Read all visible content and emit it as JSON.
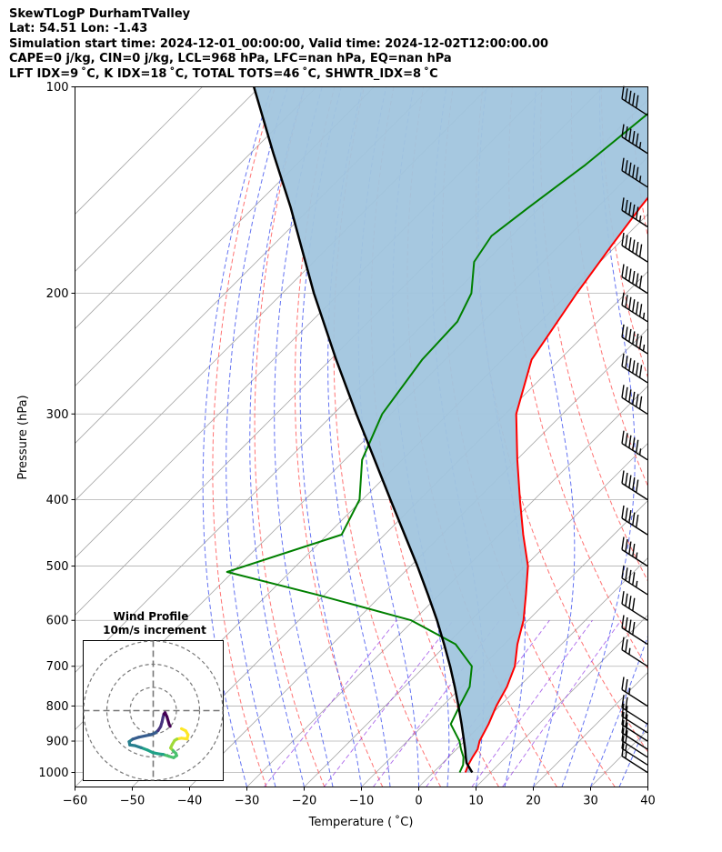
{
  "header": {
    "title": "SkewTLogP DurhamTValley",
    "location": "Lat: 54.51   Lon: -1.43",
    "times": "Simulation start time: 2024-12-01_00:00:00, Valid time: 2024-12-02T12:00:00.00",
    "indices1": "CAPE=0 j/kg, CIN=0 j/kg, LCL=968 hPa, LFC=nan hPa, EQ=nan hPa",
    "indices2": "LFT IDX=9$^\\circ$C, K IDX=18$^\\circ$C, TOTAL TOTS=46$^\\circ$C, SHWTR_IDX=8$^\\circ$C"
  },
  "header_display": {
    "indices2": "LFT IDX=9 ˚C, K IDX=18 ˚C, TOTAL TOTS=46 ˚C, SHWTR_IDX=8 ˚C"
  },
  "chart_data": {
    "type": "line",
    "title": "SkewTLogP DurhamTValley",
    "xlabel": "Temperature ($^\\circ$C)",
    "xlabel_display": "Temperature ( ˚C)",
    "ylabel": "Pressure (hPa)",
    "xlim": [
      -60,
      40
    ],
    "ylim": [
      1050,
      100
    ],
    "x_ticks": [
      "−60",
      "−50",
      "−40",
      "−30",
      "−20",
      "−10",
      "0",
      "10",
      "20",
      "30",
      "40"
    ],
    "x_tick_values": [
      -60,
      -50,
      -40,
      -30,
      -20,
      -10,
      0,
      10,
      20,
      30,
      40
    ],
    "y_ticks": [
      "1000",
      "900",
      "800",
      "700",
      "600",
      "500",
      "400",
      "300",
      "200",
      "100"
    ],
    "y_tick_values": [
      1000,
      900,
      800,
      700,
      600,
      500,
      400,
      300,
      200,
      100
    ],
    "series": [
      {
        "name": "Temperature",
        "color": "#ff0000",
        "pressure": [
          1000,
          975,
          950,
          925,
          900,
          850,
          800,
          750,
          700,
          650,
          600,
          550,
          500,
          450,
          400,
          350,
          300,
          250,
          200,
          170,
          150,
          130,
          115,
          100
        ],
        "values": [
          5.6,
          4.8,
          4.2,
          3.7,
          2.6,
          1.2,
          -0.6,
          -2.1,
          -4.3,
          -7.7,
          -10.8,
          -14.9,
          -19.5,
          -25.8,
          -32.5,
          -39.9,
          -48.1,
          -54.9,
          -58.6,
          -60.9,
          -62.5,
          -64.0,
          -64.8,
          -65.5
        ]
      },
      {
        "name": "Dewpoint",
        "color": "#008000",
        "pressure": [
          1000,
          975,
          950,
          925,
          900,
          850,
          800,
          750,
          700,
          650,
          600,
          550,
          510,
          450,
          400,
          350,
          300,
          250,
          220,
          200,
          180,
          165,
          150,
          130,
          100
        ],
        "values": [
          4.6,
          3.9,
          2.6,
          0.8,
          -0.9,
          -5.4,
          -7.0,
          -8.6,
          -11.8,
          -18.5,
          -30.4,
          -51.5,
          -71.0,
          -57.5,
          -60.5,
          -67.0,
          -71.5,
          -74.0,
          -74.5,
          -77.0,
          -82.0,
          -83.5,
          -82.0,
          -79.5,
          -76.5
        ]
      },
      {
        "name": "Parcel profile",
        "color": "#000000",
        "pressure": [
          1000,
          968,
          950,
          925,
          900,
          850,
          800,
          750,
          700,
          650,
          600,
          550,
          500,
          450,
          400,
          350,
          300,
          250,
          200,
          150,
          125,
          100
        ],
        "values": [
          6.8,
          4.1,
          3.0,
          1.5,
          -0.1,
          -3.5,
          -7.2,
          -11.2,
          -15.6,
          -20.5,
          -25.9,
          -32.0,
          -38.8,
          -46.5,
          -55.1,
          -64.8,
          -76.0,
          -89.0,
          -104.5,
          -123.5,
          -136.0,
          -151.0
        ]
      }
    ],
    "shading": {
      "name": "CIN/CAPE area between parcel and temperature",
      "color": "#a1c5de"
    },
    "reference_lines": {
      "dry_adiabats": "red dashed",
      "moist_adiabats": "blue dashed",
      "mixing_ratio": "purple dashed",
      "isotherms": "gray solid"
    },
    "wind_barbs": {
      "pressure": [
        1000,
        975,
        950,
        925,
        900,
        875,
        850,
        800,
        700,
        650,
        600,
        550,
        500,
        450,
        400,
        350,
        300,
        270,
        245,
        220,
        200,
        180,
        160,
        140,
        125,
        110
      ],
      "speed_kt": [
        15,
        15,
        20,
        20,
        20,
        20,
        20,
        25,
        25,
        40,
        40,
        45,
        45,
        50,
        50,
        55,
        60,
        60,
        65,
        65,
        60,
        60,
        55,
        55,
        55,
        50
      ]
    },
    "inset": {
      "title": "Wind Profile",
      "subtitle": "10m/s increment",
      "rings_ms": [
        10,
        20,
        30
      ],
      "hodograph_u": [
        12.2,
        14.0,
        15.0,
        14.6,
        12.2,
        10.2,
        9.2,
        8.2,
        7.5,
        8.6,
        9.8,
        10.1,
        8.8,
        6.8,
        4.3,
        2.1,
        -0.2,
        -2.5,
        -5.2,
        -7.9,
        -10.1,
        -10.4,
        -8.8,
        -6.3,
        -3.1,
        -1.0,
        0.7,
        2.1,
        3.2,
        3.8,
        4.2,
        4.6,
        5.1,
        5.9,
        6.9,
        7.3
      ],
      "hodograph_v": [
        -7.8,
        -8.7,
        -10.4,
        -12.2,
        -11.9,
        -12.3,
        -12.9,
        -14.6,
        -16.1,
        -17.3,
        -18.5,
        -19.4,
        -20.3,
        -19.7,
        -18.9,
        -18.6,
        -18.1,
        -17.0,
        -16.0,
        -15.1,
        -14.8,
        -13.4,
        -12.3,
        -11.5,
        -10.8,
        -10.4,
        -9.7,
        -8.6,
        -6.9,
        -4.9,
        -3.0,
        -1.5,
        -0.9,
        -2.6,
        -6.0,
        -6.8
      ]
    }
  }
}
